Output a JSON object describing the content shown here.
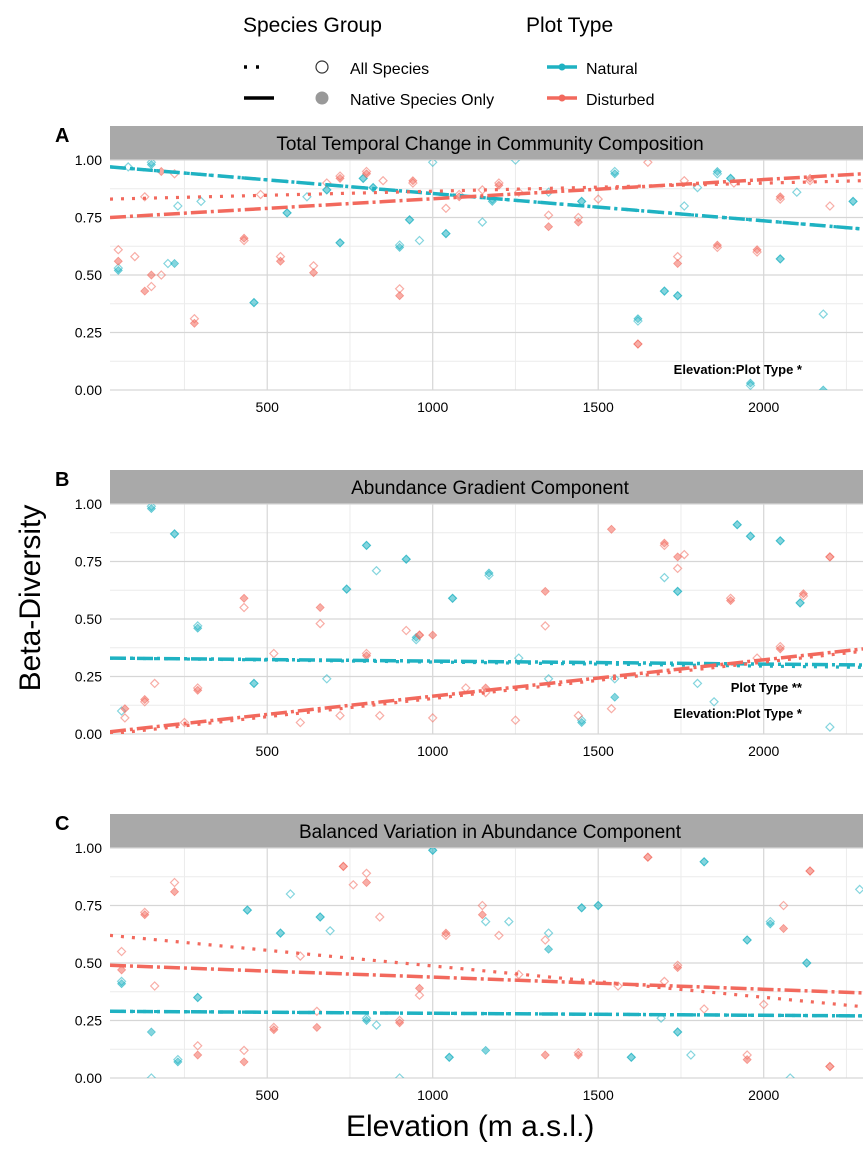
{
  "legend": {
    "species_title": "Species Group",
    "species_items": [
      "All Species",
      "Native Species Only"
    ],
    "plot_title": "Plot Type",
    "plot_items": [
      "Natural",
      "Disturbed"
    ]
  },
  "axes": {
    "ylabel": "Beta-Diversity",
    "xlabel": "Elevation (m a.s.l.)"
  },
  "colors": {
    "natural": "#1fb2c2",
    "disturbed": "#f2695d",
    "strip": "#a9a9a9"
  },
  "chart_data": [
    {
      "type": "scatter",
      "panel_letter": "A",
      "title": "Total Temporal Change in Community Composition",
      "xlim": [
        25,
        2300
      ],
      "ylim": [
        0,
        1
      ],
      "x_ticks": [
        500,
        1000,
        1500,
        2000
      ],
      "y_ticks": [
        "0.00",
        "0.25",
        "0.50",
        "0.75",
        "1.00"
      ],
      "annotations": [
        "Elevation:Plot Type *"
      ],
      "trends": [
        {
          "group": "Natural",
          "species": "All Species",
          "x": [
            25,
            2300
          ],
          "y": [
            0.97,
            0.7
          ]
        },
        {
          "group": "Natural",
          "species": "Native Species Only",
          "x": [
            25,
            2300
          ],
          "y": [
            0.97,
            0.7
          ]
        },
        {
          "group": "Disturbed",
          "species": "All Species",
          "x": [
            25,
            2300
          ],
          "y": [
            0.83,
            0.91
          ]
        },
        {
          "group": "Disturbed",
          "species": "Native Species Only",
          "x": [
            25,
            2300
          ],
          "y": [
            0.75,
            0.94
          ]
        }
      ],
      "points": [
        {
          "group": "Natural",
          "species": "All Species",
          "x": [
            50,
            80,
            150,
            200,
            230,
            300,
            460,
            560,
            620,
            680,
            720,
            790,
            820,
            900,
            930,
            960,
            1000,
            1040,
            1150,
            1180,
            1250,
            1350,
            1450,
            1550,
            1620,
            1700,
            1740,
            1760,
            1800,
            1860,
            1900,
            1960,
            2050,
            2100,
            2180,
            2270
          ],
          "y": [
            0.53,
            0.97,
            0.99,
            0.55,
            0.8,
            0.82,
            0.38,
            0.77,
            0.84,
            0.87,
            0.64,
            0.92,
            0.88,
            0.63,
            0.74,
            0.65,
            0.99,
            0.68,
            0.73,
            0.83,
            1.0,
            0.86,
            0.82,
            0.95,
            0.3,
            0.43,
            0.41,
            0.8,
            0.88,
            0.94,
            0.92,
            0.02,
            0.57,
            0.86,
            0.33,
            0.82
          ]
        },
        {
          "group": "Natural",
          "species": "Native Species Only",
          "x": [
            50,
            150,
            220,
            460,
            560,
            680,
            720,
            790,
            820,
            900,
            930,
            1040,
            1180,
            1450,
            1550,
            1620,
            1700,
            1740,
            1860,
            1900,
            1960,
            2050,
            2180,
            2270
          ],
          "y": [
            0.52,
            0.98,
            0.55,
            0.38,
            0.77,
            0.87,
            0.64,
            0.92,
            0.88,
            0.62,
            0.74,
            0.68,
            0.82,
            0.82,
            0.94,
            0.31,
            0.43,
            0.41,
            0.95,
            0.92,
            0.03,
            0.57,
            0.0,
            0.82
          ]
        },
        {
          "group": "Disturbed",
          "species": "All Species",
          "x": [
            50,
            100,
            130,
            150,
            180,
            220,
            280,
            430,
            480,
            540,
            640,
            680,
            720,
            800,
            850,
            900,
            940,
            1040,
            1080,
            1150,
            1200,
            1260,
            1350,
            1440,
            1500,
            1620,
            1650,
            1740,
            1760,
            1860,
            1910,
            1980,
            2050,
            2140,
            2200
          ],
          "y": [
            0.61,
            0.58,
            0.84,
            0.45,
            0.5,
            0.94,
            0.31,
            0.65,
            0.85,
            0.58,
            0.54,
            0.9,
            0.93,
            0.95,
            0.91,
            0.44,
            0.9,
            0.79,
            0.85,
            0.87,
            0.9,
            0.86,
            0.76,
            0.75,
            0.83,
            0.2,
            0.99,
            0.58,
            0.91,
            0.62,
            0.9,
            0.6,
            0.83,
            0.91,
            0.8
          ]
        },
        {
          "group": "Disturbed",
          "species": "Native Species Only",
          "x": [
            50,
            130,
            150,
            180,
            280,
            430,
            540,
            640,
            720,
            800,
            900,
            940,
            1080,
            1200,
            1350,
            1440,
            1620,
            1740,
            1860,
            1980,
            2050,
            2140
          ],
          "y": [
            0.56,
            0.43,
            0.5,
            0.95,
            0.29,
            0.66,
            0.56,
            0.51,
            0.92,
            0.94,
            0.41,
            0.91,
            0.84,
            0.89,
            0.71,
            0.73,
            0.2,
            0.55,
            0.63,
            0.61,
            0.84,
            0.92
          ]
        }
      ]
    },
    {
      "type": "scatter",
      "panel_letter": "B",
      "title": "Abundance Gradient Component",
      "xlim": [
        25,
        2300
      ],
      "ylim": [
        0,
        1
      ],
      "x_ticks": [
        500,
        1000,
        1500,
        2000
      ],
      "y_ticks": [
        "0.00",
        "0.25",
        "0.50",
        "0.75",
        "1.00"
      ],
      "annotations": [
        "Plot Type **",
        "Elevation:Plot Type *"
      ],
      "trends": [
        {
          "group": "Natural",
          "species": "All Species",
          "x": [
            25,
            2300
          ],
          "y": [
            0.33,
            0.29
          ]
        },
        {
          "group": "Natural",
          "species": "Native Species Only",
          "x": [
            25,
            2300
          ],
          "y": [
            0.33,
            0.3
          ]
        },
        {
          "group": "Disturbed",
          "species": "All Species",
          "x": [
            25,
            2300
          ],
          "y": [
            0.0,
            0.36
          ]
        },
        {
          "group": "Disturbed",
          "species": "Native Species Only",
          "x": [
            25,
            2300
          ],
          "y": [
            0.01,
            0.37
          ]
        }
      ],
      "points": [
        {
          "group": "Natural",
          "species": "All Species",
          "x": [
            60,
            150,
            220,
            290,
            460,
            680,
            740,
            800,
            830,
            920,
            950,
            1060,
            1170,
            1260,
            1350,
            1450,
            1550,
            1700,
            1740,
            1800,
            1850,
            1920,
            1960,
            2050,
            2110,
            2200
          ],
          "y": [
            0.1,
            0.99,
            0.87,
            0.47,
            0.22,
            0.24,
            0.63,
            0.82,
            0.71,
            0.76,
            0.41,
            0.59,
            0.69,
            0.33,
            0.24,
            0.06,
            0.24,
            0.68,
            0.62,
            0.22,
            0.14,
            0.91,
            0.86,
            0.84,
            0.57,
            0.03
          ]
        },
        {
          "group": "Natural",
          "species": "Native Species Only",
          "x": [
            150,
            220,
            290,
            460,
            740,
            800,
            920,
            950,
            1060,
            1170,
            1450,
            1550,
            1740,
            1920,
            1960,
            2050,
            2110
          ],
          "y": [
            0.98,
            0.87,
            0.46,
            0.22,
            0.63,
            0.82,
            0.76,
            0.42,
            0.59,
            0.7,
            0.05,
            0.16,
            0.62,
            0.91,
            0.86,
            0.84,
            0.57
          ]
        },
        {
          "group": "Disturbed",
          "species": "All Species",
          "x": [
            70,
            130,
            160,
            250,
            290,
            430,
            520,
            600,
            660,
            720,
            800,
            840,
            920,
            960,
            1000,
            1100,
            1160,
            1250,
            1340,
            1440,
            1540,
            1700,
            1740,
            1760,
            1900,
            1980,
            2050,
            2120,
            2200
          ],
          "y": [
            0.07,
            0.14,
            0.22,
            0.05,
            0.2,
            0.55,
            0.35,
            0.05,
            0.48,
            0.08,
            0.35,
            0.08,
            0.45,
            0.43,
            0.07,
            0.2,
            0.18,
            0.06,
            0.47,
            0.08,
            0.11,
            0.82,
            0.72,
            0.78,
            0.59,
            0.33,
            0.38,
            0.6,
            0.77
          ]
        },
        {
          "group": "Disturbed",
          "species": "Native Species Only",
          "x": [
            70,
            130,
            290,
            430,
            660,
            800,
            960,
            1000,
            1160,
            1340,
            1540,
            1700,
            1740,
            1900,
            2050,
            2120,
            2200
          ],
          "y": [
            0.11,
            0.15,
            0.19,
            0.59,
            0.55,
            0.34,
            0.43,
            0.43,
            0.2,
            0.62,
            0.89,
            0.83,
            0.77,
            0.58,
            0.37,
            0.61,
            0.77
          ]
        }
      ]
    },
    {
      "type": "scatter",
      "panel_letter": "C",
      "title": "Balanced Variation in Abundance Component",
      "xlim": [
        25,
        2300
      ],
      "ylim": [
        0,
        1
      ],
      "x_ticks": [
        500,
        1000,
        1500,
        2000
      ],
      "y_ticks": [
        "0.00",
        "0.25",
        "0.50",
        "0.75",
        "1.00"
      ],
      "annotations": [],
      "trends": [
        {
          "group": "Natural",
          "species": "All Species",
          "x": [
            25,
            2300
          ],
          "y": [
            0.29,
            0.27
          ]
        },
        {
          "group": "Natural",
          "species": "Native Species Only",
          "x": [
            25,
            2300
          ],
          "y": [
            0.29,
            0.27
          ]
        },
        {
          "group": "Disturbed",
          "species": "All Species",
          "x": [
            25,
            2300
          ],
          "y": [
            0.62,
            0.31
          ]
        },
        {
          "group": "Disturbed",
          "species": "Native Species Only",
          "x": [
            25,
            2300
          ],
          "y": [
            0.49,
            0.37
          ]
        }
      ],
      "points": [
        {
          "group": "Natural",
          "species": "All Species",
          "x": [
            60,
            150,
            230,
            290,
            440,
            540,
            570,
            660,
            690,
            800,
            830,
            900,
            1000,
            1050,
            1160,
            1230,
            1350,
            1450,
            1500,
            1600,
            1690,
            1740,
            1780,
            1820,
            1950,
            2020,
            2080,
            2130,
            2290
          ],
          "y": [
            0.42,
            0.0,
            0.08,
            0.35,
            0.73,
            0.63,
            0.8,
            0.7,
            0.64,
            0.26,
            0.23,
            0.0,
            0.99,
            0.09,
            0.68,
            0.68,
            0.63,
            0.74,
            0.75,
            0.09,
            0.26,
            0.2,
            0.1,
            0.94,
            0.6,
            0.68,
            0.0,
            0.5,
            0.82
          ]
        },
        {
          "group": "Natural",
          "species": "Native Species Only",
          "x": [
            60,
            150,
            230,
            290,
            440,
            540,
            660,
            800,
            1000,
            1050,
            1160,
            1350,
            1450,
            1500,
            1600,
            1740,
            1820,
            1950,
            2020,
            2130
          ],
          "y": [
            0.41,
            0.2,
            0.07,
            0.35,
            0.73,
            0.63,
            0.7,
            0.25,
            0.99,
            0.09,
            0.12,
            0.56,
            0.74,
            0.75,
            0.09,
            0.2,
            0.94,
            0.6,
            0.67,
            0.5
          ]
        },
        {
          "group": "Disturbed",
          "species": "All Species",
          "x": [
            60,
            130,
            160,
            220,
            290,
            430,
            520,
            600,
            650,
            730,
            760,
            800,
            840,
            900,
            960,
            1040,
            1150,
            1200,
            1260,
            1340,
            1440,
            1560,
            1650,
            1700,
            1740,
            1820,
            1950,
            2000,
            2060,
            2140,
            2200
          ],
          "y": [
            0.55,
            0.72,
            0.4,
            0.85,
            0.14,
            0.12,
            0.22,
            0.53,
            0.29,
            0.92,
            0.84,
            0.89,
            0.7,
            0.25,
            0.36,
            0.62,
            0.75,
            0.62,
            0.45,
            0.6,
            0.11,
            0.4,
            0.96,
            0.42,
            0.49,
            0.3,
            0.1,
            0.32,
            0.75,
            0.9,
            0.05
          ]
        },
        {
          "group": "Disturbed",
          "species": "Native Species Only",
          "x": [
            60,
            130,
            220,
            290,
            430,
            520,
            650,
            730,
            800,
            900,
            960,
            1040,
            1150,
            1340,
            1440,
            1650,
            1740,
            1950,
            2060,
            2140,
            2200
          ],
          "y": [
            0.47,
            0.71,
            0.81,
            0.1,
            0.07,
            0.21,
            0.22,
            0.92,
            0.85,
            0.24,
            0.39,
            0.63,
            0.71,
            0.1,
            0.1,
            0.96,
            0.48,
            0.08,
            0.65,
            0.9,
            0.05
          ]
        }
      ]
    }
  ]
}
